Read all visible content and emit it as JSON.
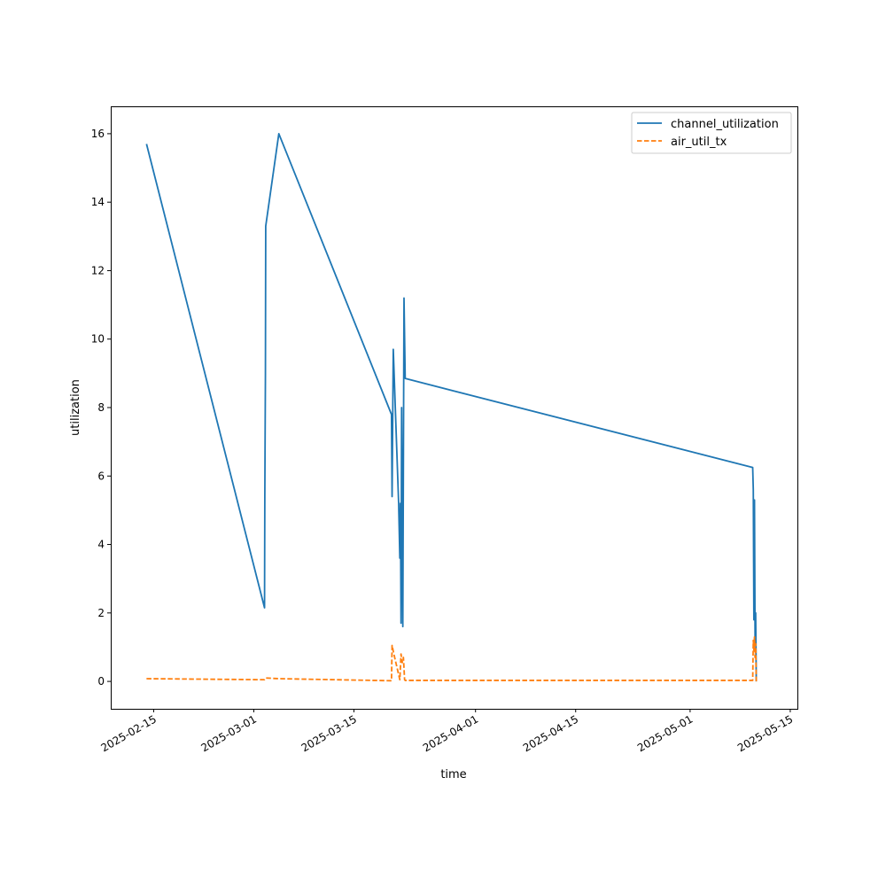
{
  "chart_data": {
    "type": "line",
    "title": "",
    "xlabel": "time",
    "ylabel": "utilization",
    "x_axis": "date",
    "xlim": [
      "2025-02-09",
      "2025-05-16"
    ],
    "ylim": [
      -0.8,
      16.8
    ],
    "xticks": [
      "2025-02-15",
      "2025-03-01",
      "2025-03-15",
      "2025-04-01",
      "2025-04-15",
      "2025-05-01",
      "2025-05-15"
    ],
    "yticks": [
      0,
      2,
      4,
      6,
      8,
      10,
      12,
      14,
      16
    ],
    "grid": false,
    "legend_position": "top-right",
    "series": [
      {
        "name": "channel_utilization",
        "color": "#1f77b4",
        "style": "solid",
        "points": [
          [
            "2025-02-14T00:00",
            15.7
          ],
          [
            "2025-03-02T12:00",
            2.15
          ],
          [
            "2025-03-02T13:00",
            5.4
          ],
          [
            "2025-03-02T15:00",
            9.0
          ],
          [
            "2025-03-02T16:00",
            13.3
          ],
          [
            "2025-03-04T12:00",
            16.0
          ],
          [
            "2025-03-20T06:00",
            7.8
          ],
          [
            "2025-03-20T08:00",
            5.4
          ],
          [
            "2025-03-20T12:00",
            9.7
          ],
          [
            "2025-03-21T06:00",
            5.2
          ],
          [
            "2025-03-21T10:00",
            3.6
          ],
          [
            "2025-03-21T12:00",
            5.2
          ],
          [
            "2025-03-21T14:00",
            1.7
          ],
          [
            "2025-03-21T16:00",
            8.0
          ],
          [
            "2025-03-21T20:00",
            1.6
          ],
          [
            "2025-03-22T00:00",
            11.2
          ],
          [
            "2025-03-22T04:00",
            8.85
          ],
          [
            "2025-05-09T18:00",
            6.25
          ],
          [
            "2025-05-09T20:00",
            5.6
          ],
          [
            "2025-05-09T22:00",
            1.8
          ],
          [
            "2025-05-10T00:00",
            5.3
          ],
          [
            "2025-05-10T02:00",
            1.2
          ],
          [
            "2025-05-10T04:00",
            2.0
          ],
          [
            "2025-05-10T06:00",
            0.0
          ]
        ]
      },
      {
        "name": "air_util_tx",
        "color": "#ff7f0e",
        "style": "dashed",
        "points": [
          [
            "2025-02-14T00:00",
            0.08
          ],
          [
            "2025-03-02T12:00",
            0.05
          ],
          [
            "2025-03-02T16:00",
            0.1
          ],
          [
            "2025-03-04T12:00",
            0.08
          ],
          [
            "2025-03-20T06:00",
            0.02
          ],
          [
            "2025-03-20T08:00",
            1.05
          ],
          [
            "2025-03-20T14:00",
            0.8
          ],
          [
            "2025-03-21T06:00",
            0.2
          ],
          [
            "2025-03-21T10:00",
            0.05
          ],
          [
            "2025-03-21T14:00",
            0.8
          ],
          [
            "2025-03-21T18:00",
            0.55
          ],
          [
            "2025-03-21T22:00",
            0.7
          ],
          [
            "2025-03-22T02:00",
            0.05
          ],
          [
            "2025-03-22T04:00",
            0.03
          ],
          [
            "2025-05-09T18:00",
            0.03
          ],
          [
            "2025-05-09T20:00",
            1.2
          ],
          [
            "2025-05-09T22:00",
            0.9
          ],
          [
            "2025-05-10T00:00",
            1.3
          ],
          [
            "2025-05-10T02:00",
            0.7
          ],
          [
            "2025-05-10T04:00",
            1.1
          ],
          [
            "2025-05-10T06:00",
            0.0
          ]
        ]
      }
    ]
  }
}
